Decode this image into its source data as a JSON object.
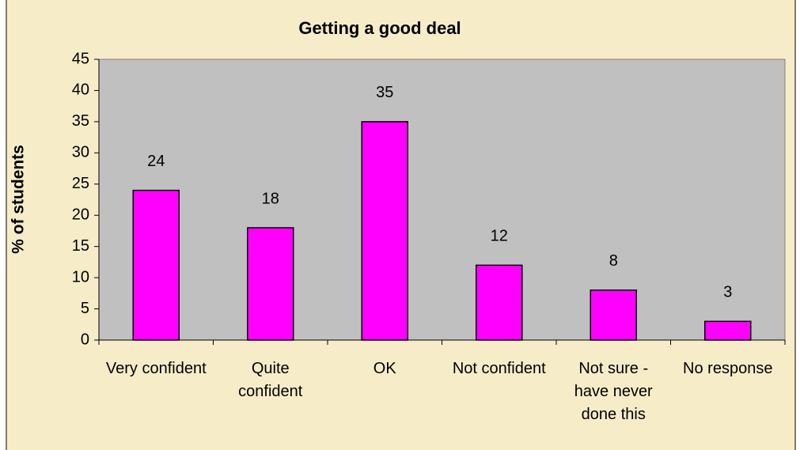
{
  "chart_data": {
    "type": "bar",
    "title": "Getting a good deal",
    "y_label": "% of students",
    "categories": [
      "Very confident",
      "Quite confident",
      "OK",
      "Not confident",
      "Not sure - have never done this",
      "No response"
    ],
    "values": [
      24,
      18,
      35,
      12,
      8,
      3
    ],
    "color": "#ff00ff",
    "ylim": [
      0,
      45
    ],
    "yticks": [
      0,
      5,
      10,
      15,
      20,
      25,
      30,
      35,
      40,
      45
    ],
    "grid": false
  }
}
